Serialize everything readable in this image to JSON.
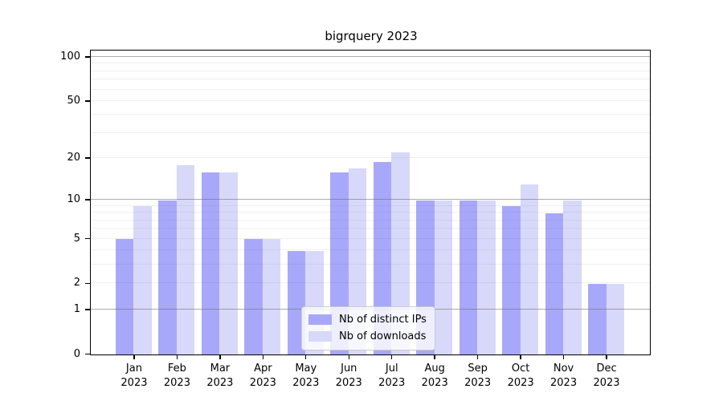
{
  "chart_data": {
    "type": "bar",
    "title": "bigrquery 2023",
    "categories": [
      "Jan 2023",
      "Feb 2023",
      "Mar 2023",
      "Apr 2023",
      "May 2023",
      "Jun 2023",
      "Jul 2023",
      "Aug 2023",
      "Sep 2023",
      "Oct 2023",
      "Nov 2023",
      "Dec 2023"
    ],
    "series": [
      {
        "name": "Nb of distinct IPs",
        "color": "#a8a8fa",
        "values": [
          5,
          10,
          16,
          5,
          4,
          16,
          19,
          10,
          10,
          9,
          8,
          2
        ]
      },
      {
        "name": "Nb of downloads",
        "color": "#d8d8fa",
        "values": [
          9,
          18,
          16,
          5,
          4,
          17,
          22,
          10,
          10,
          13,
          10,
          2
        ]
      }
    ],
    "xlabel": "",
    "ylabel": "",
    "yscale": "log1p",
    "ylim": [
      0,
      110
    ],
    "yticks": [
      0,
      1,
      2,
      5,
      10,
      20,
      50,
      100
    ],
    "gridlines": {
      "major": [
        1,
        10,
        100
      ],
      "minor": [
        2,
        3,
        4,
        5,
        6,
        7,
        8,
        9,
        20,
        30,
        40,
        50,
        60,
        70,
        80,
        90
      ]
    },
    "grid_on": true,
    "legend_position": "lower center",
    "colors": {
      "axis": "#000000",
      "major_grid": "#b3b3b3",
      "minor_grid": "#ececec",
      "background": "#ffffff"
    }
  }
}
